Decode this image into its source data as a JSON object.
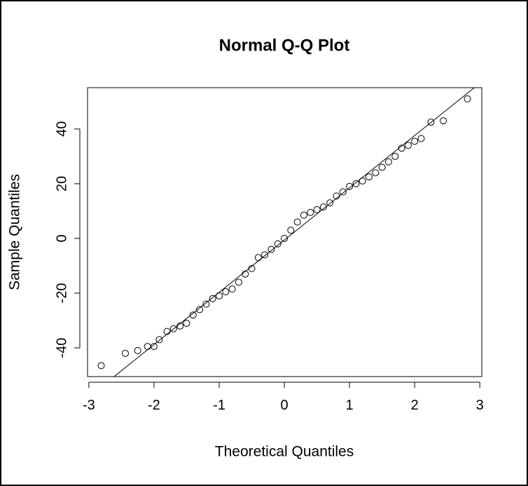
{
  "chart_data": {
    "type": "scatter",
    "title": "Normal Q-Q Plot",
    "x_label": "Theoretical Quantiles",
    "y_label": "Sample Quantiles",
    "x": [
      -2.81,
      -2.44,
      -2.25,
      -2.1,
      -2.0,
      -1.92,
      -1.8,
      -1.7,
      -1.6,
      -1.5,
      -1.4,
      -1.3,
      -1.2,
      -1.1,
      -1.0,
      -0.9,
      -0.8,
      -0.7,
      -0.6,
      -0.5,
      -0.4,
      -0.3,
      -0.2,
      -0.1,
      0,
      0.1,
      0.2,
      0.3,
      0.4,
      0.5,
      0.6,
      0.7,
      0.8,
      0.9,
      1.0,
      1.1,
      1.2,
      1.3,
      1.4,
      1.5,
      1.6,
      1.7,
      1.8,
      1.9,
      2.0,
      2.1,
      2.25,
      2.44,
      2.81
    ],
    "values": [
      -46.5,
      -42,
      -41,
      -39.5,
      -39.5,
      -37,
      -34,
      -33,
      -32,
      -31,
      -28,
      -26,
      -24,
      -22,
      -21,
      -19.5,
      -18.5,
      -16,
      -13,
      -11,
      -7,
      -6,
      -4,
      -2,
      0,
      3,
      6,
      8.5,
      9.5,
      10.5,
      11.5,
      13,
      15.5,
      17,
      19,
      20,
      21,
      22.5,
      24,
      26,
      28,
      30,
      33,
      34,
      35.5,
      36.5,
      42.5,
      43,
      51
    ],
    "reference_line": {
      "intercept": -0.6,
      "slope": 19.1
    },
    "color": "#000000",
    "xlim": [
      -3.02,
      3.03
    ],
    "ylim": [
      -50.5,
      55.1
    ],
    "xticks": [
      -3,
      -2,
      -1,
      0,
      1,
      2,
      3
    ],
    "yticks": [
      -40,
      -20,
      0,
      20,
      40
    ]
  }
}
